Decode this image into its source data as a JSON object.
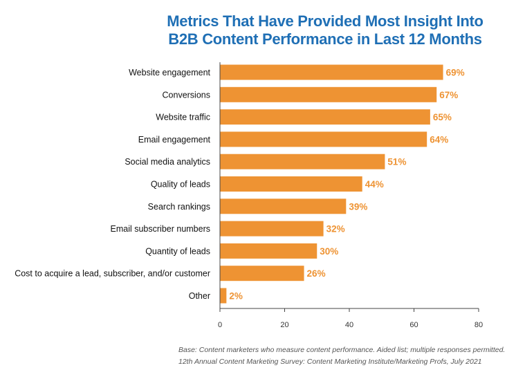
{
  "chart_data": {
    "type": "bar",
    "orientation": "horizontal",
    "title": [
      "Metrics That Have Provided Most Insight Into",
      "B2B Content Performance in Last 12 Months"
    ],
    "categories": [
      "Website engagement",
      "Conversions",
      "Website traffic",
      "Email engagement",
      "Social media analytics",
      "Quality of leads",
      "Search rankings",
      "Email subscriber numbers",
      "Quantity of leads",
      "Cost to acquire a lead, subscriber, and/or customer",
      "Other"
    ],
    "values": [
      69,
      67,
      65,
      64,
      51,
      44,
      39,
      32,
      30,
      26,
      2
    ],
    "value_labels": [
      "69%",
      "67%",
      "65%",
      "64%",
      "51%",
      "44%",
      "39%",
      "32%",
      "30%",
      "26%",
      "2%"
    ],
    "xlim": [
      0,
      80
    ],
    "xticks": [
      0,
      20,
      40,
      60,
      80
    ],
    "xlabel": "",
    "ylabel": "",
    "grid": false,
    "legend": "none"
  },
  "colors": {
    "title": "#1f6fb5",
    "bar": "#ee9333",
    "value_label": "#ee9333",
    "axis": "#444444",
    "category_text": "#111111"
  },
  "footnotes": {
    "base": "Base: Content marketers who measure content performance. Aided list; multiple responses permitted.",
    "source": "12th Annual Content Marketing Survey: Content Marketing Institute/Marketing Profs, July 2021"
  }
}
